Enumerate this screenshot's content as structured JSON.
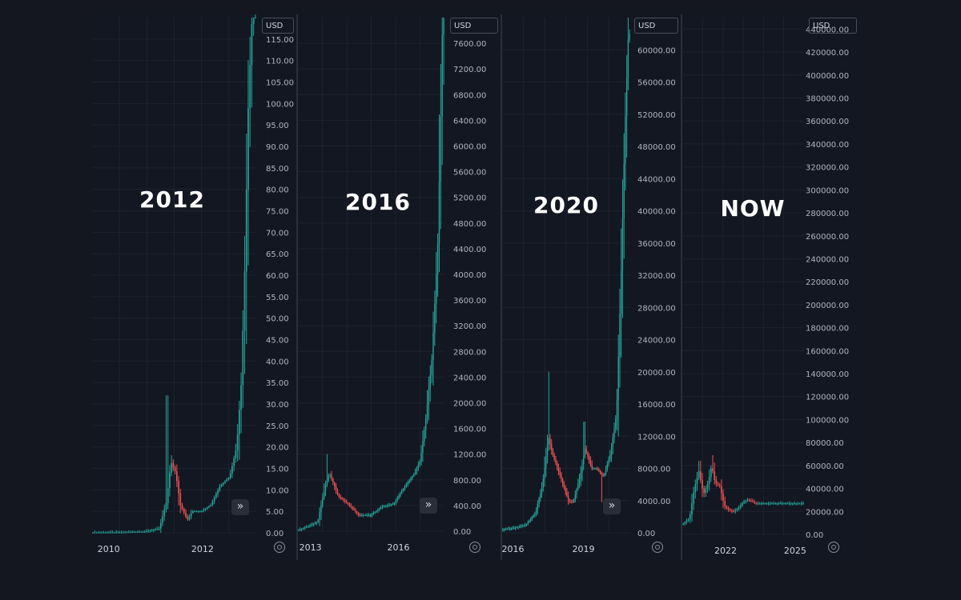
{
  "colors": {
    "up": "#26a69a",
    "down": "#ef5350",
    "grid": "#1e222d",
    "text": "#b2b5be",
    "bg": "#131722"
  },
  "currency_label": "USD",
  "chart_data": [
    {
      "type": "candlestick",
      "title": "2012",
      "ylim": [
        0,
        120
      ],
      "yticks": [
        "0.00",
        "5.00",
        "10.00",
        "15.00",
        "20.00",
        "25.00",
        "30.00",
        "35.00",
        "40.00",
        "45.00",
        "50.00",
        "55.00",
        "60.00",
        "65.00",
        "70.00",
        "75.00",
        "80.00",
        "85.00",
        "90.00",
        "95.00",
        "100.00",
        "105.00",
        "110.00",
        "115.00"
      ],
      "xlim": [
        2009.85,
        2013.35
      ],
      "xticks": [
        {
          "label": "2010",
          "x": 2010.0
        },
        {
          "label": "2012",
          "x": 2012.0
        }
      ],
      "anchors": [
        [
          2009.85,
          0.06
        ],
        [
          2010.5,
          0.07
        ],
        [
          2011.0,
          0.3
        ],
        [
          2011.3,
          1.0
        ],
        [
          2011.45,
          7.0
        ],
        [
          2011.55,
          16.5
        ],
        [
          2011.65,
          14.0
        ],
        [
          2011.75,
          6.5
        ],
        [
          2011.9,
          3.0
        ],
        [
          2012.0,
          5.0
        ],
        [
          2012.2,
          5.0
        ],
        [
          2012.4,
          6.5
        ],
        [
          2012.6,
          11.0
        ],
        [
          2012.8,
          13.0
        ],
        [
          2012.95,
          20.0
        ],
        [
          2013.05,
          35.0
        ],
        [
          2013.12,
          60.0
        ],
        [
          2013.2,
          100.0
        ],
        [
          2013.3,
          125.0
        ]
      ],
      "spikes": [
        {
          "x": 2011.45,
          "high": 32.0
        }
      ]
    },
    {
      "type": "candlestick",
      "title": "2016",
      "ylim": [
        0,
        8000
      ],
      "yticks": [
        "0.00",
        "400.00",
        "800.00",
        "1200.00",
        "1600.00",
        "2000.00",
        "2400.00",
        "2800.00",
        "3200.00",
        "3600.00",
        "4000.00",
        "4400.00",
        "4800.00",
        "5200.00",
        "5600.00",
        "6000.00",
        "6400.00",
        "6800.00",
        "7200.00",
        "7600.00"
      ],
      "xlim": [
        2012.9,
        2017.9
      ],
      "xticks": [
        {
          "label": "2013",
          "x": 2013.0
        },
        {
          "label": "2016",
          "x": 2016.0
        }
      ],
      "anchors": [
        [
          2012.9,
          10
        ],
        [
          2013.3,
          80
        ],
        [
          2013.6,
          150
        ],
        [
          2013.85,
          700
        ],
        [
          2014.0,
          900
        ],
        [
          2014.3,
          550
        ],
        [
          2014.7,
          400
        ],
        [
          2015.0,
          250
        ],
        [
          2015.4,
          250
        ],
        [
          2015.8,
          380
        ],
        [
          2016.2,
          430
        ],
        [
          2016.5,
          650
        ],
        [
          2016.9,
          900
        ],
        [
          2017.1,
          1100
        ],
        [
          2017.3,
          1800
        ],
        [
          2017.5,
          2700
        ],
        [
          2017.7,
          4500
        ],
        [
          2017.8,
          6500
        ],
        [
          2017.88,
          8500
        ]
      ],
      "spikes": [
        {
          "x": 2013.9,
          "high": 1200
        }
      ]
    },
    {
      "type": "candlestick",
      "title": "2020",
      "ylim": [
        0,
        64000
      ],
      "yticks": [
        "0.00",
        "4000.00",
        "8000.00",
        "12000.00",
        "16000.00",
        "20000.00",
        "24000.00",
        "28000.00",
        "32000.00",
        "36000.00",
        "40000.00",
        "44000.00",
        "48000.00",
        "52000.00",
        "56000.00",
        "60000.00"
      ],
      "xlim": [
        2015.95,
        2021.4
      ],
      "xticks": [
        {
          "label": "2016",
          "x": 2016.0
        },
        {
          "label": "2019",
          "x": 2019.0
        }
      ],
      "anchors": [
        [
          2015.95,
          400
        ],
        [
          2016.5,
          600
        ],
        [
          2017.0,
          1000
        ],
        [
          2017.4,
          2500
        ],
        [
          2017.7,
          6000
        ],
        [
          2017.95,
          12000
        ],
        [
          2018.1,
          10000
        ],
        [
          2018.4,
          7500
        ],
        [
          2018.8,
          4000
        ],
        [
          2019.0,
          3800
        ],
        [
          2019.3,
          7000
        ],
        [
          2019.5,
          10500
        ],
        [
          2019.8,
          8000
        ],
        [
          2020.0,
          8000
        ],
        [
          2020.3,
          7000
        ],
        [
          2020.6,
          10000
        ],
        [
          2020.85,
          15000
        ],
        [
          2021.05,
          33000
        ],
        [
          2021.2,
          50000
        ],
        [
          2021.35,
          62000
        ]
      ],
      "spikes": [
        {
          "x": 2017.95,
          "high": 20000
        },
        {
          "x": 2019.45,
          "high": 13800
        },
        {
          "x": 2020.2,
          "low": 3800
        }
      ]
    },
    {
      "type": "candlestick",
      "title": "NOW",
      "ylim": [
        0,
        450000
      ],
      "yticks": [
        "0.00",
        "20000.00",
        "40000.00",
        "60000.00",
        "80000.00",
        "100000.00",
        "120000.00",
        "140000.00",
        "160000.00",
        "180000.00",
        "200000.00",
        "220000.00",
        "240000.00",
        "260000.00",
        "280000.00",
        "300000.00",
        "320000.00",
        "340000.00",
        "360000.00",
        "380000.00",
        "400000.00",
        "420000.00",
        "440000.00"
      ],
      "xlim": [
        2020.55,
        2025.8
      ],
      "xticks": [
        {
          "label": "2022",
          "x": 2022.0
        },
        {
          "label": "2025",
          "x": 2025.0
        }
      ],
      "anchors": [
        [
          2020.6,
          9000
        ],
        [
          2020.9,
          14000
        ],
        [
          2021.1,
          40000
        ],
        [
          2021.3,
          55000
        ],
        [
          2021.5,
          35000
        ],
        [
          2021.7,
          45000
        ],
        [
          2021.85,
          60000
        ],
        [
          2022.0,
          45000
        ],
        [
          2022.2,
          42000
        ],
        [
          2022.4,
          25000
        ],
        [
          2022.6,
          21000
        ],
        [
          2022.8,
          20000
        ],
        [
          2023.0,
          23000
        ],
        [
          2023.2,
          28000
        ],
        [
          2023.4,
          30000
        ],
        [
          2023.6,
          29000
        ],
        [
          2023.72,
          27000
        ]
      ],
      "spikes": [
        {
          "x": 2021.3,
          "high": 64000
        },
        {
          "x": 2021.85,
          "high": 69000
        }
      ]
    }
  ]
}
